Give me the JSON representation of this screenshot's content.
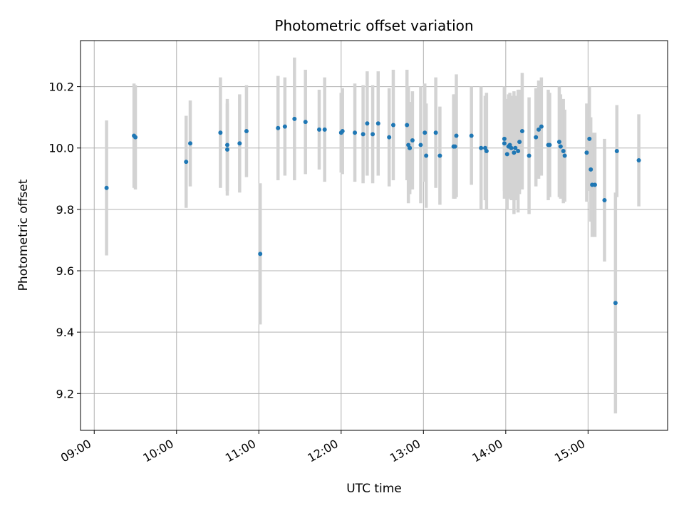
{
  "chart_data": {
    "type": "scatter",
    "title": "Photometric offset variation",
    "xlabel": "UTC time",
    "ylabel": "Photometric offset",
    "x_ticks": [
      "09:00",
      "10:00",
      "11:00",
      "12:00",
      "13:00",
      "14:00",
      "15:00"
    ],
    "y_ticks": [
      "9.2",
      "9.4",
      "9.6",
      "9.8",
      "10.0",
      "10.2"
    ],
    "y_tick_values": [
      9.2,
      9.4,
      9.6,
      9.8,
      10.0,
      10.2
    ],
    "xlim": [
      "08:50",
      "15:58"
    ],
    "ylim": [
      9.08,
      10.35
    ],
    "grid": true,
    "colors": {
      "marker": "#1f77b4",
      "errorbar": "#d3d3d3",
      "grid": "#b0b0b0"
    },
    "series": [
      {
        "x": [
          "09:09",
          "09:29",
          "09:30",
          "10:07",
          "10:10",
          "10:32",
          "10:37",
          "10:37",
          "10:46",
          "10:51",
          "11:01",
          "11:14",
          "11:19",
          "11:26",
          "11:34",
          "11:44",
          "11:48",
          "12:00",
          "12:01",
          "12:10",
          "12:16",
          "12:19",
          "12:23",
          "12:27",
          "12:35",
          "12:38",
          "12:48",
          "12:49",
          "12:50",
          "12:50",
          "12:52",
          "12:58",
          "13:01",
          "13:02",
          "13:09",
          "13:12",
          "13:22",
          "13:23",
          "13:24",
          "13:35",
          "13:42",
          "13:45",
          "13:46",
          "13:59",
          "13:59",
          "14:01",
          "14:02",
          "14:03",
          "14:04",
          "14:06",
          "14:07",
          "14:09",
          "14:10",
          "14:12",
          "14:17",
          "14:22",
          "14:24",
          "14:26",
          "14:31",
          "14:32",
          "14:39",
          "14:40",
          "14:42",
          "14:43",
          "14:59",
          "15:01",
          "15:02",
          "15:03",
          "15:05",
          "15:12",
          "15:20",
          "15:21",
          "15:37"
        ],
        "y": [
          9.87,
          10.04,
          10.035,
          9.955,
          10.015,
          10.05,
          9.995,
          10.01,
          10.015,
          10.055,
          9.655,
          10.065,
          10.07,
          10.095,
          10.085,
          10.06,
          10.06,
          10.05,
          10.055,
          10.05,
          10.045,
          10.08,
          10.045,
          10.08,
          10.035,
          10.075,
          10.075,
          10.01,
          10.0,
          10.0,
          10.025,
          10.01,
          10.05,
          9.975,
          10.05,
          9.975,
          10.005,
          10.005,
          10.04,
          10.04,
          10.0,
          10.0,
          9.99,
          10.03,
          10.015,
          9.98,
          10.005,
          10.01,
          10.0,
          9.985,
          10.0,
          9.99,
          10.02,
          10.055,
          9.975,
          10.035,
          10.06,
          10.07,
          10.01,
          10.01,
          10.02,
          10.005,
          9.99,
          9.975,
          9.985,
          10.03,
          9.93,
          9.88,
          9.88,
          9.83,
          9.495,
          9.99,
          9.96
        ],
        "yerr": [
          0.22,
          0.17,
          0.17,
          0.15,
          0.14,
          0.18,
          0.15,
          0.15,
          0.16,
          0.15,
          0.23,
          0.17,
          0.16,
          0.2,
          0.17,
          0.13,
          0.17,
          0.13,
          0.14,
          0.16,
          0.16,
          0.17,
          0.16,
          0.17,
          0.16,
          0.18,
          0.18,
          0.19,
          0.15,
          0.15,
          0.16,
          0.19,
          0.16,
          0.17,
          0.18,
          0.16,
          0.17,
          0.17,
          0.2,
          0.16,
          0.2,
          0.17,
          0.19,
          0.17,
          0.18,
          0.18,
          0.17,
          0.17,
          0.17,
          0.2,
          0.17,
          0.2,
          0.17,
          0.19,
          0.19,
          0.16,
          0.16,
          0.16,
          0.18,
          0.17,
          0.18,
          0.17,
          0.17,
          0.15,
          0.16,
          0.17,
          0.17,
          0.17,
          0.17,
          0.2,
          0.36,
          0.15,
          0.15
        ]
      }
    ]
  }
}
